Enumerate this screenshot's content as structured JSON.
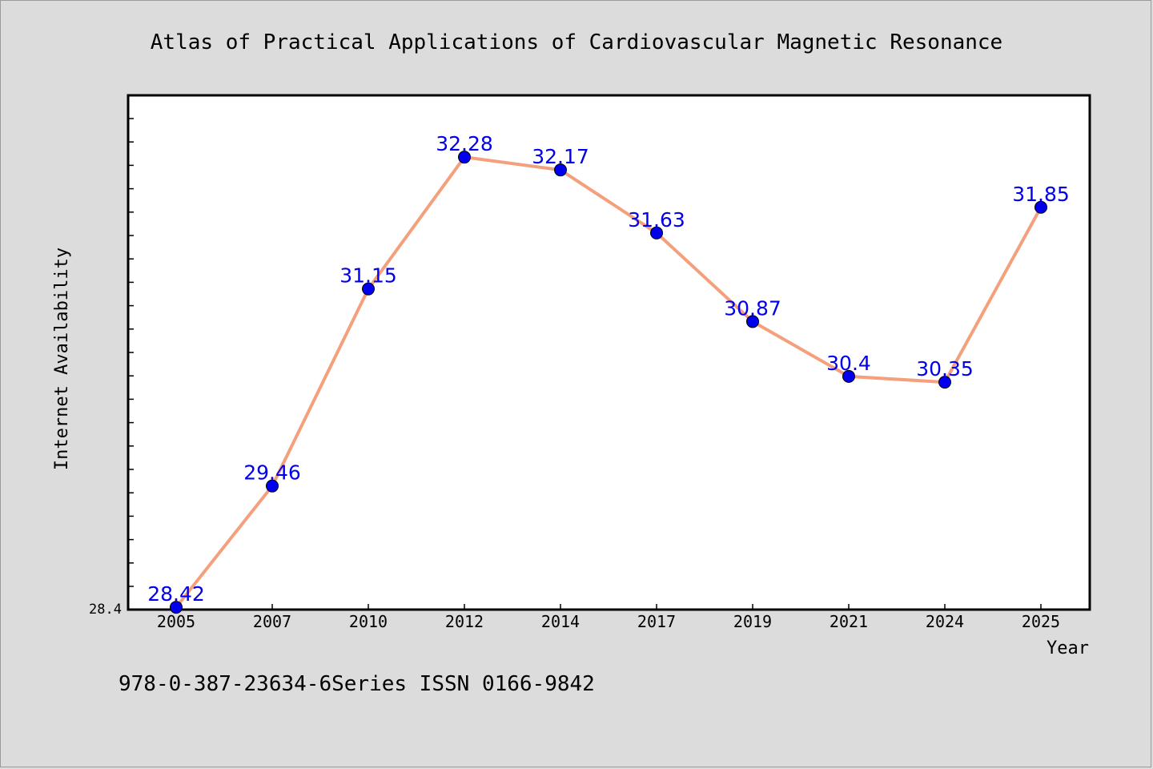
{
  "chart_data": {
    "type": "line",
    "title": "Atlas of Practical Applications of Cardiovascular Magnetic Resonance",
    "xlabel": "Year",
    "ylabel": "Internet Availability",
    "categories": [
      "2005",
      "2007",
      "2010",
      "2012",
      "2014",
      "2017",
      "2019",
      "2021",
      "2024",
      "2025"
    ],
    "values": [
      28.42,
      29.46,
      31.15,
      32.28,
      32.17,
      31.63,
      30.87,
      30.4,
      30.35,
      31.85
    ],
    "data_labels": [
      "28.42",
      "29.46",
      "31.15",
      "32.28",
      "32.17",
      "31.63",
      "30.87",
      "30.4",
      "30.35",
      "31.85"
    ],
    "ylim": [
      28.4,
      32.81
    ],
    "yticks_labeled": [
      "28.4"
    ],
    "grid": false,
    "line_color": "#f4a07c",
    "marker_color": "#0000ee",
    "background": "#dcdcdc",
    "plot_background": "#ffffff"
  },
  "footer_text": "978-0-387-23634-6Series ISSN 0166-9842"
}
